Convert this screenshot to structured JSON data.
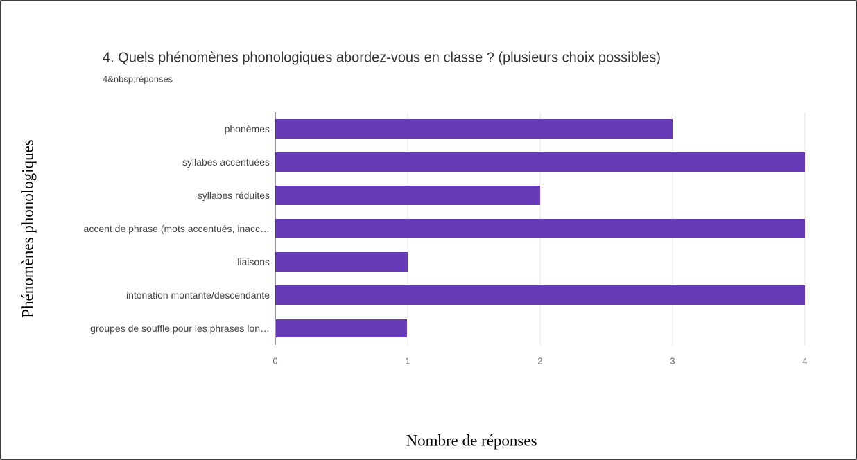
{
  "chart_data": {
    "type": "bar",
    "orientation": "horizontal",
    "title": "4. Quels phénomènes phonologiques abordez-vous en classe ? (plusieurs choix possibles)",
    "subtitle": "4&nbsp;réponses",
    "y_label": "Phénomènes phonologiques",
    "x_label": "Nombre de réponses",
    "categories": [
      "phonèmes",
      "syllabes accentuées",
      "syllabes réduites",
      "accent de phrase (mots accentués, inacc…",
      "liaisons",
      "intonation montante/descendante",
      "groupes de souffle pour les phrases lon…"
    ],
    "values": [
      3,
      4,
      2,
      4,
      1,
      4,
      1
    ],
    "color": "#673ab7",
    "xlim": [
      0,
      4
    ],
    "xticks": [
      0,
      1,
      2,
      3,
      4
    ],
    "grid": true
  }
}
